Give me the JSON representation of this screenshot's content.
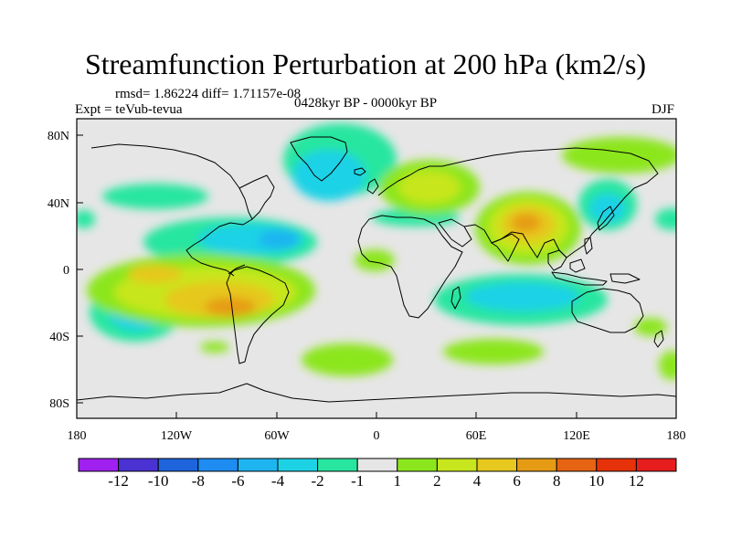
{
  "map": {
    "title": "Streamfunction Perturbation at 200 hPa (km2/s)",
    "stats": "rmsd= 1.86224  diff= 1.71157e-08",
    "experiment": "Expt = teVub-tevua",
    "period": "0428kyr BP - 0000kyr BP",
    "season": "DJF",
    "lat_labels": [
      "80N",
      "40N",
      "0",
      "40S",
      "80S"
    ],
    "lon_labels": [
      "180",
      "120W",
      "60W",
      "0",
      "60E",
      "120E",
      "180"
    ],
    "background_color": "#e6e6e6"
  },
  "colorbar": {
    "labels": [
      "-12",
      "-10",
      "-8",
      "-6",
      "-4",
      "-2",
      "-1",
      "1",
      "2",
      "4",
      "6",
      "8",
      "10",
      "12"
    ],
    "colors": [
      "#a020f0",
      "#4b32d2",
      "#1e64dc",
      "#1e8cf0",
      "#1eb4f0",
      "#1ed2e6",
      "#28e6a0",
      "#e6e6e6",
      "#8ce61e",
      "#c8e61e",
      "#e6c81e",
      "#e69b14",
      "#e66414",
      "#e6320a",
      "#e61e1e"
    ]
  }
}
